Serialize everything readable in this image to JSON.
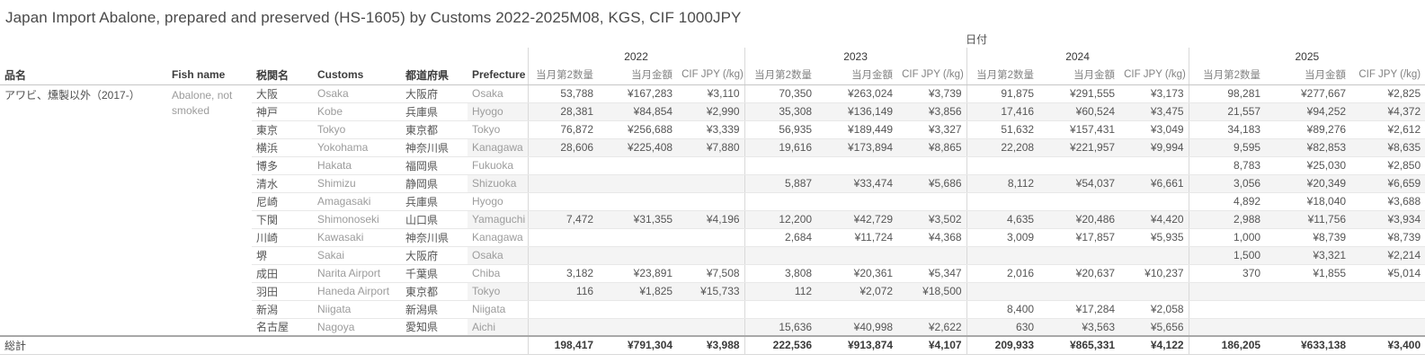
{
  "title": "Japan Import Abalone, prepared and preserved (HS-1605) by Customs 2022-2025M08, KGS, CIF 1000JPY",
  "colors": {
    "title_text": "#4a4a4a",
    "header_text": "#3d3d3d",
    "value_text": "#565656",
    "muted_text": "#9c9c9c",
    "row_band": "#f4f4f4"
  },
  "chart_data": {
    "type": "table",
    "title": "Japan Import Abalone, prepared and preserved (HS-1605) by Customs 2022-2025M08, KGS, CIF 1000JPY",
    "date_dimension_label": "日付",
    "row_header_columns": [
      "品名",
      "Fish name",
      "税関名",
      "Customs",
      "都道府県",
      "Prefecture"
    ],
    "year_columns": [
      "2022",
      "2023",
      "2024",
      "2025"
    ],
    "measure_columns": [
      "当月第2数量",
      "当月金額",
      "CIF JPY (/kg)"
    ],
    "item": {
      "name_jp": "アワビ、燻製以外（2017-）",
      "name_en": "Abalone, not smoked"
    },
    "rows": [
      {
        "customs_jp": "大阪",
        "customs_en": "Osaka",
        "prefecture_jp": "大阪府",
        "prefecture_en": "Osaka",
        "values": {
          "2022": [
            "53,788",
            "¥167,283",
            "¥3,110"
          ],
          "2023": [
            "70,350",
            "¥263,024",
            "¥3,739"
          ],
          "2024": [
            "91,875",
            "¥291,555",
            "¥3,173"
          ],
          "2025": [
            "98,281",
            "¥277,667",
            "¥2,825"
          ]
        }
      },
      {
        "customs_jp": "神戸",
        "customs_en": "Kobe",
        "prefecture_jp": "兵庫県",
        "prefecture_en": "Hyogo",
        "values": {
          "2022": [
            "28,381",
            "¥84,854",
            "¥2,990"
          ],
          "2023": [
            "35,308",
            "¥136,149",
            "¥3,856"
          ],
          "2024": [
            "17,416",
            "¥60,524",
            "¥3,475"
          ],
          "2025": [
            "21,557",
            "¥94,252",
            "¥4,372"
          ]
        }
      },
      {
        "customs_jp": "東京",
        "customs_en": "Tokyo",
        "prefecture_jp": "東京都",
        "prefecture_en": "Tokyo",
        "values": {
          "2022": [
            "76,872",
            "¥256,688",
            "¥3,339"
          ],
          "2023": [
            "56,935",
            "¥189,449",
            "¥3,327"
          ],
          "2024": [
            "51,632",
            "¥157,431",
            "¥3,049"
          ],
          "2025": [
            "34,183",
            "¥89,276",
            "¥2,612"
          ]
        }
      },
      {
        "customs_jp": "横浜",
        "customs_en": "Yokohama",
        "prefecture_jp": "神奈川県",
        "prefecture_en": "Kanagawa",
        "values": {
          "2022": [
            "28,606",
            "¥225,408",
            "¥7,880"
          ],
          "2023": [
            "19,616",
            "¥173,894",
            "¥8,865"
          ],
          "2024": [
            "22,208",
            "¥221,957",
            "¥9,994"
          ],
          "2025": [
            "9,595",
            "¥82,853",
            "¥8,635"
          ]
        }
      },
      {
        "customs_jp": "博多",
        "customs_en": "Hakata",
        "prefecture_jp": "福岡県",
        "prefecture_en": "Fukuoka",
        "values": {
          "2025": [
            "8,783",
            "¥25,030",
            "¥2,850"
          ]
        }
      },
      {
        "customs_jp": "清水",
        "customs_en": "Shimizu",
        "prefecture_jp": "静岡県",
        "prefecture_en": "Shizuoka",
        "values": {
          "2023": [
            "5,887",
            "¥33,474",
            "¥5,686"
          ],
          "2024": [
            "8,112",
            "¥54,037",
            "¥6,661"
          ],
          "2025": [
            "3,056",
            "¥20,349",
            "¥6,659"
          ]
        }
      },
      {
        "customs_jp": "尼崎",
        "customs_en": "Amagasaki",
        "prefecture_jp": "兵庫県",
        "prefecture_en": "Hyogo",
        "values": {
          "2025": [
            "4,892",
            "¥18,040",
            "¥3,688"
          ]
        }
      },
      {
        "customs_jp": "下関",
        "customs_en": "Shimonoseki",
        "prefecture_jp": "山口県",
        "prefecture_en": "Yamaguchi",
        "values": {
          "2022": [
            "7,472",
            "¥31,355",
            "¥4,196"
          ],
          "2023": [
            "12,200",
            "¥42,729",
            "¥3,502"
          ],
          "2024": [
            "4,635",
            "¥20,486",
            "¥4,420"
          ],
          "2025": [
            "2,988",
            "¥11,756",
            "¥3,934"
          ]
        }
      },
      {
        "customs_jp": "川崎",
        "customs_en": "Kawasaki",
        "prefecture_jp": "神奈川県",
        "prefecture_en": "Kanagawa",
        "values": {
          "2023": [
            "2,684",
            "¥11,724",
            "¥4,368"
          ],
          "2024": [
            "3,009",
            "¥17,857",
            "¥5,935"
          ],
          "2025": [
            "1,000",
            "¥8,739",
            "¥8,739"
          ]
        }
      },
      {
        "customs_jp": "堺",
        "customs_en": "Sakai",
        "prefecture_jp": "大阪府",
        "prefecture_en": "Osaka",
        "values": {
          "2025": [
            "1,500",
            "¥3,321",
            "¥2,214"
          ]
        }
      },
      {
        "customs_jp": "成田",
        "customs_en": "Narita Airport",
        "prefecture_jp": "千葉県",
        "prefecture_en": "Chiba",
        "values": {
          "2022": [
            "3,182",
            "¥23,891",
            "¥7,508"
          ],
          "2023": [
            "3,808",
            "¥20,361",
            "¥5,347"
          ],
          "2024": [
            "2,016",
            "¥20,637",
            "¥10,237"
          ],
          "2025": [
            "370",
            "¥1,855",
            "¥5,014"
          ]
        }
      },
      {
        "customs_jp": "羽田",
        "customs_en": "Haneda Airport",
        "prefecture_jp": "東京都",
        "prefecture_en": "Tokyo",
        "values": {
          "2022": [
            "116",
            "¥1,825",
            "¥15,733"
          ],
          "2023": [
            "112",
            "¥2,072",
            "¥18,500"
          ]
        }
      },
      {
        "customs_jp": "新潟",
        "customs_en": "Niigata",
        "prefecture_jp": "新潟県",
        "prefecture_en": "Niigata",
        "values": {
          "2024": [
            "8,400",
            "¥17,284",
            "¥2,058"
          ]
        }
      },
      {
        "customs_jp": "名古屋",
        "customs_en": "Nagoya",
        "prefecture_jp": "愛知県",
        "prefecture_en": "Aichi",
        "values": {
          "2023": [
            "15,636",
            "¥40,998",
            "¥2,622"
          ],
          "2024": [
            "630",
            "¥3,563",
            "¥5,656"
          ]
        }
      }
    ],
    "grand_total": {
      "label": "総計",
      "values": {
        "2022": [
          "198,417",
          "¥791,304",
          "¥3,988"
        ],
        "2023": [
          "222,536",
          "¥913,874",
          "¥4,107"
        ],
        "2024": [
          "209,933",
          "¥865,331",
          "¥4,122"
        ],
        "2025": [
          "186,205",
          "¥633,138",
          "¥3,400"
        ]
      }
    }
  }
}
